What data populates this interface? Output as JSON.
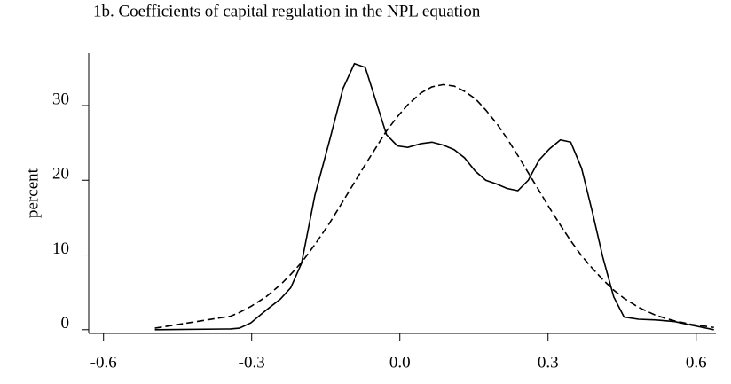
{
  "chart_data": {
    "type": "line",
    "title": "1b. Coefficients of capital regulation in the NPL equation",
    "y_label": "percent",
    "x": [
      -0.496,
      -0.343,
      -0.325,
      -0.302,
      -0.271,
      -0.242,
      -0.221,
      -0.199,
      -0.172,
      -0.142,
      -0.115,
      -0.092,
      -0.07,
      -0.048,
      -0.027,
      -0.005,
      0.016,
      0.043,
      0.065,
      0.088,
      0.11,
      0.131,
      0.153,
      0.174,
      0.196,
      0.217,
      0.239,
      0.26,
      0.282,
      0.303,
      0.325,
      0.346,
      0.368,
      0.39,
      0.411,
      0.433,
      0.454,
      0.483,
      0.519,
      0.555,
      0.591,
      0.636
    ],
    "series": [
      {
        "color": "#000000",
        "style": "solid",
        "values": [
          0.0,
          0.1,
          0.2,
          0.9,
          2.6,
          4.1,
          5.6,
          8.9,
          18.0,
          25.4,
          32.3,
          35.6,
          35.1,
          30.5,
          26.1,
          24.6,
          24.4,
          24.9,
          25.1,
          24.7,
          24.1,
          23.0,
          21.2,
          20.0,
          19.5,
          18.9,
          18.6,
          20.0,
          22.7,
          24.2,
          25.4,
          25.1,
          21.6,
          15.7,
          9.7,
          4.4,
          1.7,
          1.4,
          1.3,
          1.1,
          0.6,
          0.0
        ]
      },
      {
        "color": "#000000",
        "style": "dashed",
        "values": [
          0.2,
          1.8,
          2.3,
          3.1,
          4.4,
          6.0,
          7.4,
          9.0,
          11.4,
          14.3,
          17.2,
          19.7,
          22.1,
          24.4,
          26.6,
          28.5,
          30.1,
          31.7,
          32.5,
          32.8,
          32.6,
          31.9,
          30.9,
          29.4,
          27.6,
          25.6,
          23.3,
          21.0,
          18.6,
          16.3,
          14.0,
          11.9,
          9.9,
          8.2,
          6.7,
          5.3,
          4.2,
          3.0,
          1.9,
          1.2,
          0.7,
          0.3
        ]
      }
    ],
    "xlim": [
      -0.63,
      0.64
    ],
    "xticks": [
      -0.6,
      -0.3,
      {
        "value": 0,
        "label": "0.0"
      },
      0.3,
      0.6
    ],
    "ylim": [
      -0.5,
      37
    ],
    "yticks": [
      0,
      10,
      20,
      30
    ],
    "grid": false
  }
}
